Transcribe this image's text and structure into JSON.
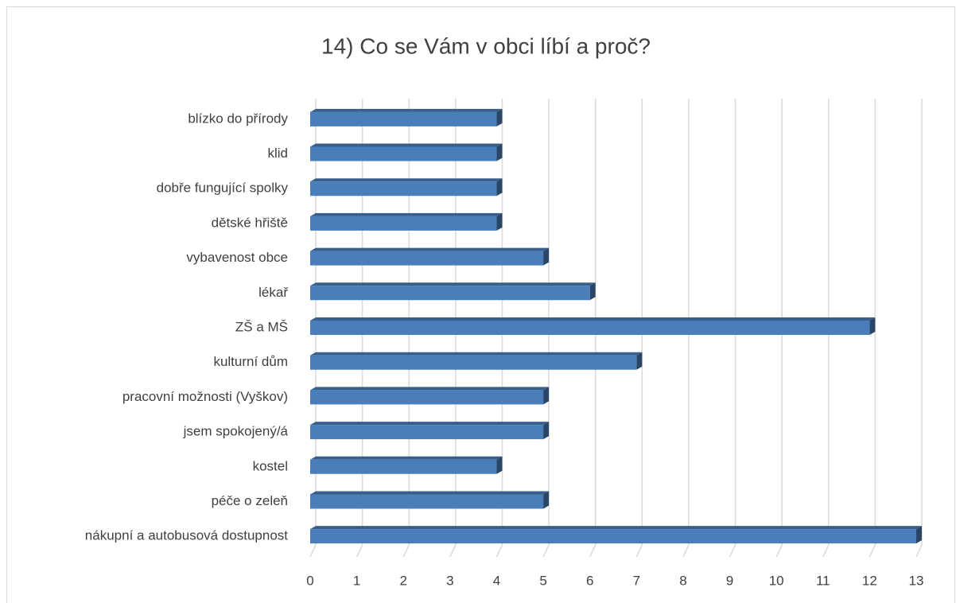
{
  "chart_data": {
    "type": "bar",
    "orientation": "horizontal",
    "title": "14) Co se Vám v obci líbí a proč?",
    "categories": [
      "blízko do přírody",
      "klid",
      "dobře fungující spolky",
      "dětské hřiště",
      "vybavenost obce",
      "lékař",
      "ZŠ a MŠ",
      "kulturní dům",
      "pracovní možnosti (Vyškov)",
      "jsem spokojený/á",
      "kostel",
      "péče o zeleň",
      "nákupní a autobusová dostupnost"
    ],
    "values": [
      4,
      4,
      4,
      4,
      5,
      6,
      12,
      7,
      5,
      5,
      4,
      5,
      13
    ],
    "color": "#4a7ebb",
    "xlim": [
      0,
      13
    ],
    "xticks": [
      0,
      1,
      2,
      3,
      4,
      5,
      6,
      7,
      8,
      9,
      10,
      11,
      12,
      13
    ],
    "grid": true
  }
}
